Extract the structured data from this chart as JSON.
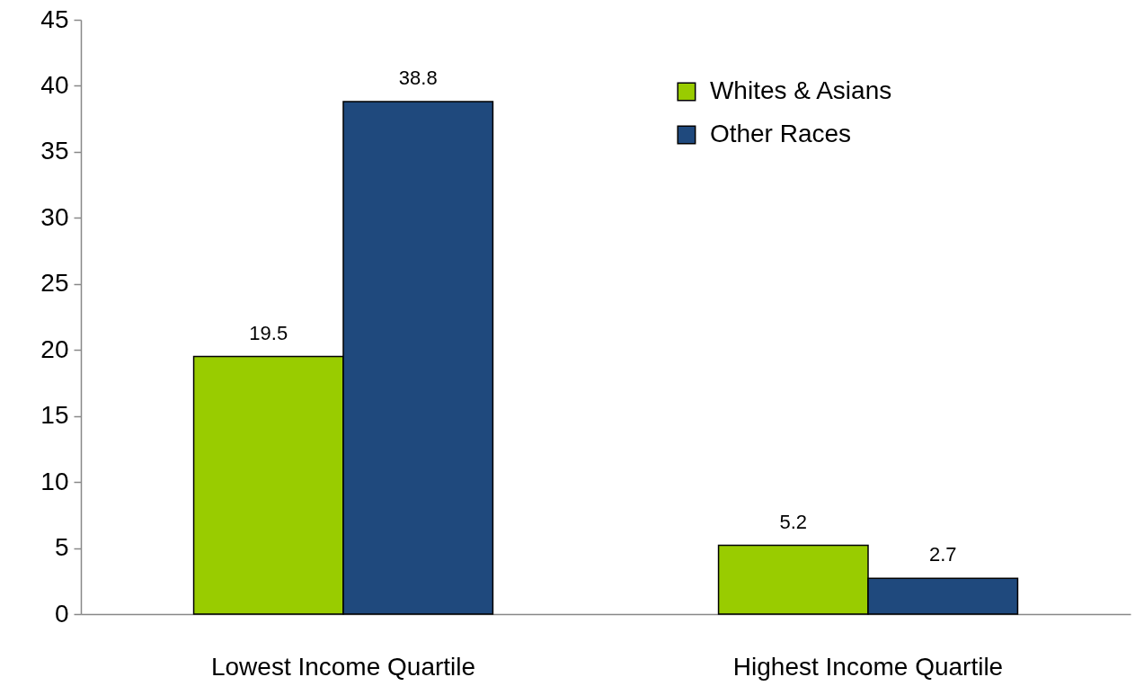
{
  "chart_data": {
    "type": "bar",
    "categories": [
      "Lowest Income Quartile",
      "Highest Income Quartile"
    ],
    "series": [
      {
        "name": "Whites & Asians",
        "color": "#99cc00",
        "values": [
          19.5,
          5.2
        ]
      },
      {
        "name": "Other Races",
        "color": "#1f497d",
        "values": [
          38.8,
          2.7
        ]
      }
    ],
    "ylim": [
      0,
      45
    ],
    "yticks": [
      0,
      5,
      10,
      15,
      20,
      25,
      30,
      35,
      40,
      45
    ],
    "data_labels": true,
    "legend": "top right",
    "grid": false
  }
}
